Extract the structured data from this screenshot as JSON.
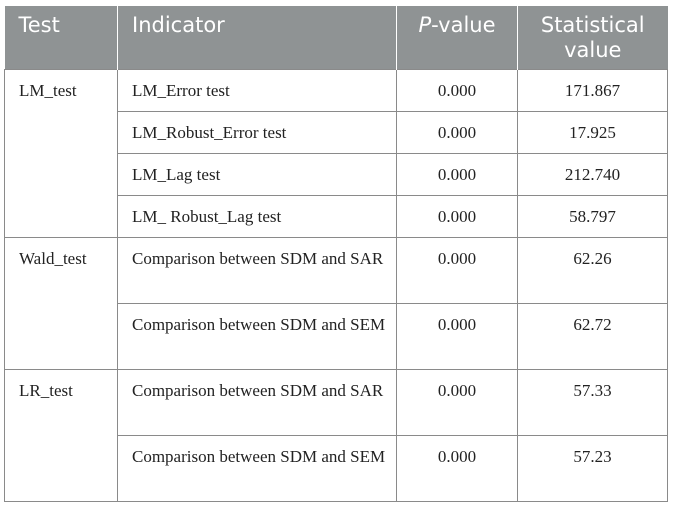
{
  "headers": {
    "test": "Test",
    "indicator": "Indicator",
    "p_prefix": "P",
    "p_suffix": "-value",
    "stat": "Statistical value"
  },
  "groups": [
    {
      "test": "LM_test",
      "rows": [
        {
          "indicator": "LM_Error test",
          "p": "0.000",
          "stat": "171.867"
        },
        {
          "indicator": "LM_Robust_Error test",
          "p": "0.000",
          "stat": "17.925"
        },
        {
          "indicator": "LM_Lag test",
          "p": "0.000",
          "stat": "212.740"
        },
        {
          "indicator": "LM_ Robust_Lag test",
          "p": "0.000",
          "stat": "58.797"
        }
      ]
    },
    {
      "test": "Wald_test",
      "rows": [
        {
          "indicator": "Comparison between SDM and SAR",
          "p": "0.000",
          "stat": "62.26"
        },
        {
          "indicator": "Comparison between SDM and SEM",
          "p": "0.000",
          "stat": "62.72"
        }
      ]
    },
    {
      "test": "LR_test",
      "rows": [
        {
          "indicator": "Comparison between SDM and SAR",
          "p": "0.000",
          "stat": "57.33"
        },
        {
          "indicator": "Comparison between SDM and SEM",
          "p": "0.000",
          "stat": "57.23"
        }
      ]
    }
  ]
}
